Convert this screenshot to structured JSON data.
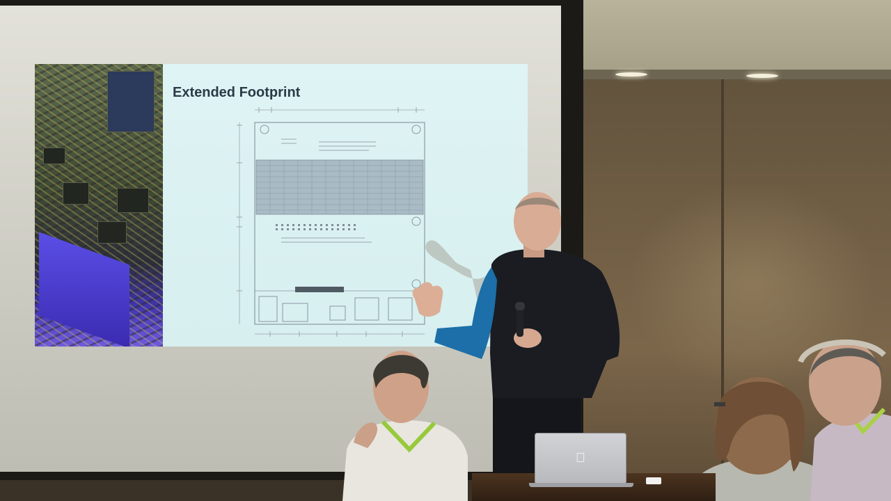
{
  "slide": {
    "title": "Extended Footprint"
  },
  "laptop": {
    "logo_icon": "apple-logo-icon"
  },
  "colors": {
    "slide_background": "#d8efef",
    "slide_title": "#2a3a48",
    "presenter_shirt": "#1a1c22",
    "presenter_sleeve": "#1c6fa8",
    "screen_surface": "#d3d2c9",
    "wall": "#6e5c43"
  }
}
